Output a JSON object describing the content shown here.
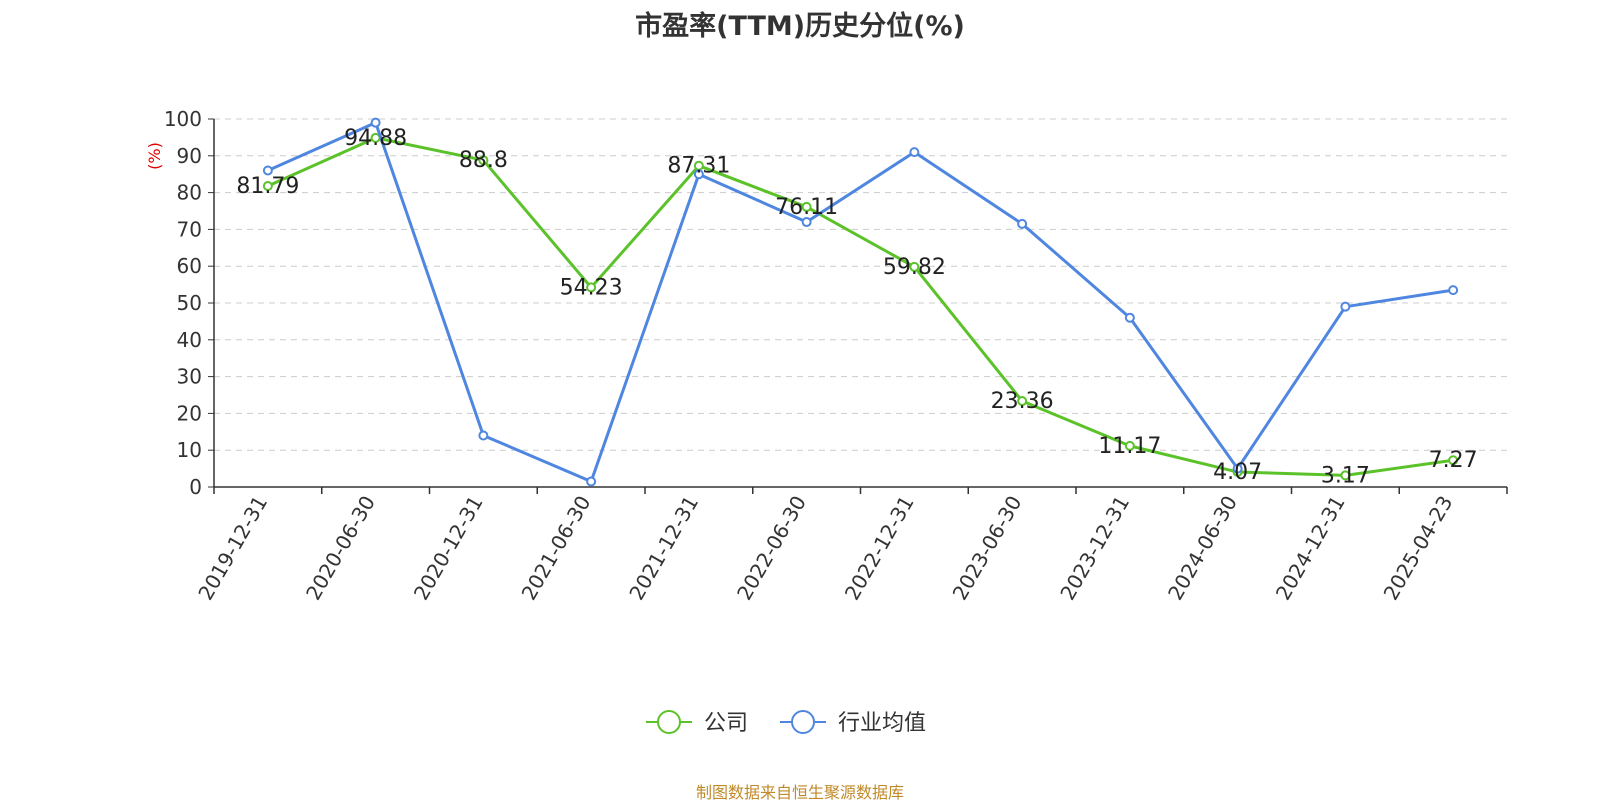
{
  "chart_data": {
    "type": "line",
    "title": "市盈率(TTM)历史分位(%)",
    "ylabel": "(%)",
    "ylim": [
      0,
      100
    ],
    "yticks": [
      0,
      10,
      20,
      30,
      40,
      50,
      60,
      70,
      80,
      90,
      100
    ],
    "grid": true,
    "legend_position": "bottom",
    "categories": [
      "2019-12-31",
      "2020-06-30",
      "2020-12-31",
      "2021-06-30",
      "2021-12-31",
      "2022-06-30",
      "2022-12-31",
      "2023-06-30",
      "2023-12-31",
      "2024-06-30",
      "2024-12-31",
      "2025-04-23"
    ],
    "series": [
      {
        "name": "公司",
        "color": "#5cc22a",
        "show_labels": true,
        "values": [
          81.79,
          94.88,
          88.8,
          54.23,
          87.31,
          76.11,
          59.82,
          23.36,
          11.17,
          4.07,
          3.17,
          7.27
        ]
      },
      {
        "name": "行业均值",
        "color": "#4f86e0",
        "show_labels": false,
        "values": [
          86,
          99,
          14,
          1.5,
          85,
          72,
          91,
          71.5,
          46,
          5,
          49,
          53.5
        ]
      }
    ],
    "source_note": "制图数据来自恒生聚源数据库"
  }
}
